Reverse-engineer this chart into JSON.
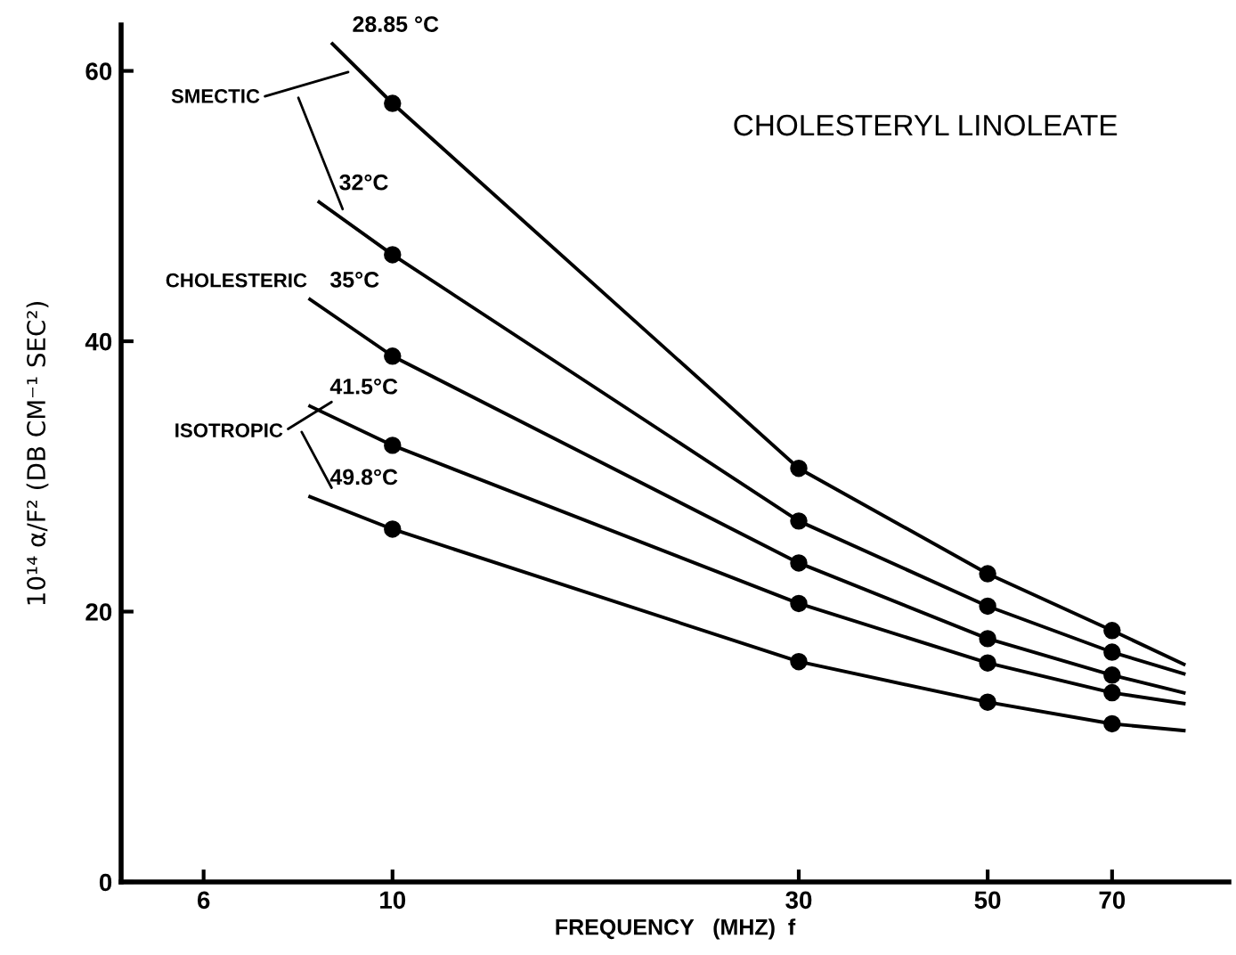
{
  "chart_data": {
    "type": "line",
    "title": "CHOLESTERYL LINOLEATE",
    "xlabel": "FREQUENCY   (MHZ)  f",
    "ylabel": "10¹⁴ α/F² (DB CM⁻¹ SEC²)",
    "log": "x",
    "xlim": [
      4.8,
      96
    ],
    "xticks": [
      6,
      10,
      30,
      50,
      70
    ],
    "ylim": [
      0,
      63.4
    ],
    "yticks": [
      0,
      20,
      40,
      60
    ],
    "grid": false,
    "legend": false,
    "series": [
      {
        "name": "28.85 °C",
        "color": "#000000",
        "marker": "none",
        "x": [
          8.5,
          10,
          30,
          50,
          70,
          85
        ],
        "values": [
          62,
          57.6,
          30.6,
          22.8,
          18.6,
          16.1
        ]
      },
      {
        "name": "32°C",
        "color": "#000000",
        "marker": "none",
        "x": [
          8.2,
          10,
          30,
          50,
          70,
          85
        ],
        "values": [
          50.3,
          46.4,
          26.7,
          20.4,
          17.0,
          15.4
        ]
      },
      {
        "name": "35°C",
        "color": "#000000",
        "marker": "none",
        "x": [
          8.0,
          10,
          30,
          50,
          70,
          85
        ],
        "values": [
          43.1,
          38.9,
          23.6,
          18.0,
          15.3,
          14.0
        ]
      },
      {
        "name": "41.5°C",
        "color": "#000000",
        "marker": "none",
        "x": [
          8.0,
          10,
          30,
          50,
          70,
          85
        ],
        "values": [
          35.2,
          32.3,
          20.6,
          16.2,
          14.0,
          13.2
        ]
      },
      {
        "name": "49.8°C",
        "color": "#000000",
        "marker": "none",
        "x": [
          8.0,
          10,
          30,
          50,
          70,
          85
        ],
        "values": [
          28.5,
          26.1,
          16.3,
          13.3,
          11.7,
          11.2
        ]
      },
      {
        "type": "scatter",
        "color": "#000000",
        "marker": "circle",
        "x": [
          10,
          30,
          50,
          70
        ],
        "values": [
          57.6,
          30.6,
          22.8,
          18.6
        ]
      },
      {
        "type": "scatter",
        "color": "#000000",
        "marker": "circle",
        "x": [
          10,
          30,
          50,
          70
        ],
        "values": [
          46.4,
          26.7,
          20.4,
          17.0
        ]
      },
      {
        "type": "scatter",
        "color": "#000000",
        "marker": "circle",
        "x": [
          10,
          30,
          50,
          70
        ],
        "values": [
          38.9,
          23.6,
          18.0,
          15.3
        ]
      },
      {
        "type": "scatter",
        "color": "#000000",
        "marker": "circle",
        "x": [
          10,
          30,
          50,
          70
        ],
        "values": [
          32.3,
          20.6,
          16.2,
          14.0
        ]
      },
      {
        "type": "scatter",
        "color": "#000000",
        "marker": "circle",
        "x": [
          10,
          30,
          50,
          70
        ],
        "values": [
          26.1,
          16.3,
          13.3,
          11.7
        ]
      }
    ],
    "annotations": [
      "SMECTIC",
      "CHOLESTERIC",
      "ISOTROPIC"
    ]
  }
}
